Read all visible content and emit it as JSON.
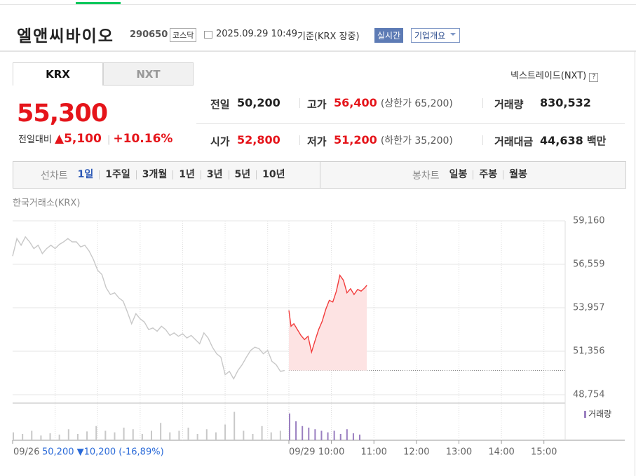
{
  "header": {
    "name": "엘앤씨바이오",
    "code": "290650",
    "market": "코스닥",
    "datetime": "2025.09.29 10:49",
    "basis": "기준(KRX 장중)",
    "realtime": "실시간",
    "company_info": "기업개요"
  },
  "tabs": [
    "KRX",
    "NXT"
  ],
  "nxt_link": "넥스트레이드(NXT)",
  "quote": {
    "price": "55,300",
    "change_label": "전일대비",
    "change": "5,100",
    "change_rate": "+10.16%"
  },
  "stats": [
    [
      {
        "label": "전일",
        "value": "50,200"
      },
      {
        "label": "고가",
        "value": "56,400",
        "note": "(상한가 65,200)"
      },
      {
        "label": "거래량",
        "value": "830,532"
      }
    ],
    [
      {
        "label": "시가",
        "value": "52,800"
      },
      {
        "label": "저가",
        "value": "51,200",
        "note": "(하한가 35,200)"
      },
      {
        "label": "거래대금",
        "value": "44,638",
        "unit": "백만"
      }
    ]
  ],
  "chart_tabs": {
    "line_label": "선차트",
    "line": [
      "1일",
      "1주일",
      "3개월",
      "1년",
      "3년",
      "5년",
      "10년"
    ],
    "candle_label": "봉차트",
    "candle": [
      "일봉",
      "주봉",
      "월봉"
    ]
  },
  "chart_data": {
    "type": "line",
    "source": "한국거래소(KRX)",
    "xlim": [
      0,
      780
    ],
    "ylim": [
      48250,
      59160
    ],
    "yticks": [
      {
        "value": 59160,
        "label": "59,160"
      },
      {
        "value": 56559,
        "label": "56,559"
      },
      {
        "value": 53957,
        "label": "53,957"
      },
      {
        "value": 51356,
        "label": "51,356"
      },
      {
        "value": 48754,
        "label": "48,754"
      }
    ],
    "xticks": [
      {
        "value": 0,
        "label": "09/26"
      },
      {
        "value": 390,
        "label": "09/29"
      },
      {
        "value": 450,
        "label": "10:00"
      },
      {
        "value": 510,
        "label": "11:00"
      },
      {
        "value": 570,
        "label": "12:00"
      },
      {
        "value": 630,
        "label": "13:00"
      },
      {
        "value": 690,
        "label": "14:00"
      },
      {
        "value": 750,
        "label": "15:00"
      }
    ],
    "xgrid": [
      60,
      120,
      180,
      240,
      300,
      360,
      390,
      450,
      510,
      570,
      630,
      690,
      750
    ],
    "baseline": 50200,
    "prev_summary": "50,200 ▼10,200 (-16,89%)",
    "series": [
      {
        "color": "#c8c8c8",
        "x": [
          0,
          6,
          12,
          18,
          24,
          30,
          36,
          42,
          48,
          54,
          60,
          66,
          72,
          78,
          84,
          90,
          96,
          102,
          108,
          114,
          120,
          126,
          132,
          138,
          144,
          150,
          156,
          162,
          168,
          174,
          180,
          186,
          192,
          198,
          204,
          210,
          216,
          222,
          228,
          234,
          240,
          246,
          252,
          258,
          264,
          270,
          276,
          282,
          288,
          294,
          300,
          306,
          312,
          318,
          324,
          330,
          336,
          342,
          348,
          354,
          360,
          366,
          372,
          378,
          384
        ],
        "values": [
          57050,
          58100,
          57700,
          58200,
          57900,
          57500,
          57700,
          57200,
          57500,
          57700,
          57500,
          57750,
          57900,
          58100,
          57900,
          57900,
          57600,
          57700,
          57350,
          56850,
          56200,
          55950,
          55150,
          54750,
          54850,
          54550,
          54350,
          53700,
          53000,
          53600,
          53300,
          53100,
          52650,
          52750,
          52550,
          52850,
          52650,
          52300,
          52450,
          52250,
          52400,
          52150,
          52300,
          52050,
          51800,
          52450,
          52150,
          51600,
          51200,
          51000,
          49950,
          50150,
          49700,
          50200,
          50550,
          51000,
          51400,
          51600,
          51500,
          51200,
          51400,
          50750,
          50550,
          50150,
          50200
        ]
      },
      {
        "color": "#f23c3c",
        "fill": "#fde3e3",
        "x": [
          390,
          393,
          397,
          402,
          407,
          412,
          417,
          422,
          427,
          432,
          437,
          442,
          447,
          452,
          457,
          462,
          467,
          472,
          477,
          482,
          487,
          492,
          497,
          500
        ],
        "values": [
          53800,
          52850,
          53000,
          52650,
          52300,
          52050,
          52250,
          51300,
          52000,
          52650,
          53150,
          53850,
          54400,
          54300,
          54950,
          55900,
          55600,
          54850,
          55100,
          54750,
          55050,
          54950,
          55150,
          55300
        ]
      }
    ],
    "volume": {
      "name": "거래량",
      "ylim": [
        0,
        100
      ],
      "series": [
        {
          "color": "#c8c8c8",
          "x": [
            0,
            13,
            26,
            39,
            52,
            65,
            78,
            91,
            104,
            117,
            130,
            143,
            156,
            169,
            182,
            195,
            208,
            221,
            234,
            247,
            260,
            273,
            286,
            299,
            312,
            325,
            338,
            351,
            364,
            377
          ],
          "values": [
            25,
            20,
            30,
            15,
            22,
            18,
            35,
            20,
            28,
            45,
            30,
            25,
            40,
            35,
            20,
            30,
            55,
            25,
            30,
            40,
            20,
            35,
            25,
            50,
            90,
            30,
            20,
            45,
            25,
            30
          ]
        },
        {
          "color": "#9a7fc0",
          "x": [
            390,
            399,
            408,
            417,
            426,
            435,
            444,
            453,
            462,
            471,
            480,
            489
          ],
          "values": [
            85,
            60,
            45,
            40,
            35,
            30,
            25,
            30,
            20,
            35,
            22,
            18
          ]
        }
      ]
    }
  }
}
